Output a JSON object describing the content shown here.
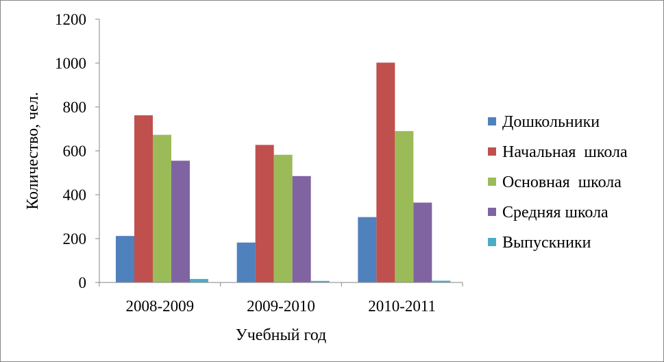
{
  "chart_data": {
    "type": "bar",
    "title": "",
    "xlabel": "Учебный год",
    "ylabel": "Количество, чел.",
    "ylim": [
      0,
      1200
    ],
    "yticks": [
      0,
      200,
      400,
      600,
      800,
      1000,
      1200
    ],
    "grid": false,
    "legend_position": "right",
    "categories": [
      "2008-2009",
      "2009-2010",
      "2010-2011"
    ],
    "series": [
      {
        "name": "Дошкольники",
        "color": "#4F81BD",
        "values": [
          212,
          182,
          298
        ]
      },
      {
        "name": "Начальная  школа",
        "color": "#C0504D",
        "values": [
          762,
          627,
          1002
        ]
      },
      {
        "name": "Основная  школа",
        "color": "#9BBB59",
        "values": [
          673,
          582,
          690
        ]
      },
      {
        "name": "Средняя школа",
        "color": "#8064A2",
        "values": [
          555,
          485,
          364
        ]
      },
      {
        "name": "Выпускники",
        "color": "#4BACC6",
        "values": [
          16,
          7,
          8
        ]
      }
    ]
  }
}
